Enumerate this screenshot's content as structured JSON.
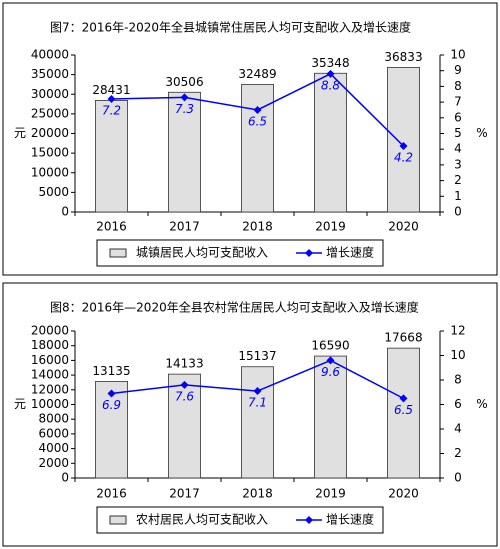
{
  "chart_data": [
    {
      "type": "bar",
      "title": "图7：2016年-2020年全县城镇常住居民人均可支配收入及增长速度",
      "categories": [
        "2016",
        "2017",
        "2018",
        "2019",
        "2020"
      ],
      "ylabel": "元",
      "y2label": "%",
      "series": [
        {
          "name": "城镇居民人均可支配收入",
          "type": "bar",
          "color": "#e0e0e0",
          "values": [
            28431,
            30506,
            32489,
            35348,
            36833
          ]
        },
        {
          "name": "增长速度",
          "type": "line",
          "axis": "y2",
          "color": "#0000ff",
          "values": [
            7.2,
            7.3,
            6.5,
            8.8,
            4.2
          ]
        }
      ],
      "ylim": [
        0,
        40000
      ],
      "yticks": [
        0,
        5000,
        10000,
        15000,
        20000,
        25000,
        30000,
        35000,
        40000
      ],
      "y2lim": [
        0,
        10
      ],
      "y2ticks": [
        0,
        1,
        2,
        3,
        4,
        5,
        6,
        7,
        8,
        9,
        10
      ],
      "legend": "bottom"
    },
    {
      "type": "bar",
      "title": "图8：2016年—2020年全县农村常住居民人均可支配收入及增长速度",
      "categories": [
        "2016",
        "2017",
        "2018",
        "2019",
        "2020"
      ],
      "ylabel": "元",
      "y2label": "%",
      "series": [
        {
          "name": "农村居民人均可支配收入",
          "type": "bar",
          "color": "#e0e0e0",
          "values": [
            13135,
            14133,
            15137,
            16590,
            17668
          ]
        },
        {
          "name": "增长速度",
          "type": "line",
          "axis": "y2",
          "color": "#0000ff",
          "values": [
            6.9,
            7.6,
            7.1,
            9.6,
            6.5
          ]
        }
      ],
      "ylim": [
        0,
        20000
      ],
      "yticks": [
        0,
        2000,
        4000,
        6000,
        8000,
        10000,
        12000,
        14000,
        16000,
        18000,
        20000
      ],
      "y2lim": [
        0,
        12
      ],
      "y2ticks": [
        0,
        2,
        4,
        6,
        8,
        10,
        12
      ],
      "legend": "bottom"
    }
  ]
}
